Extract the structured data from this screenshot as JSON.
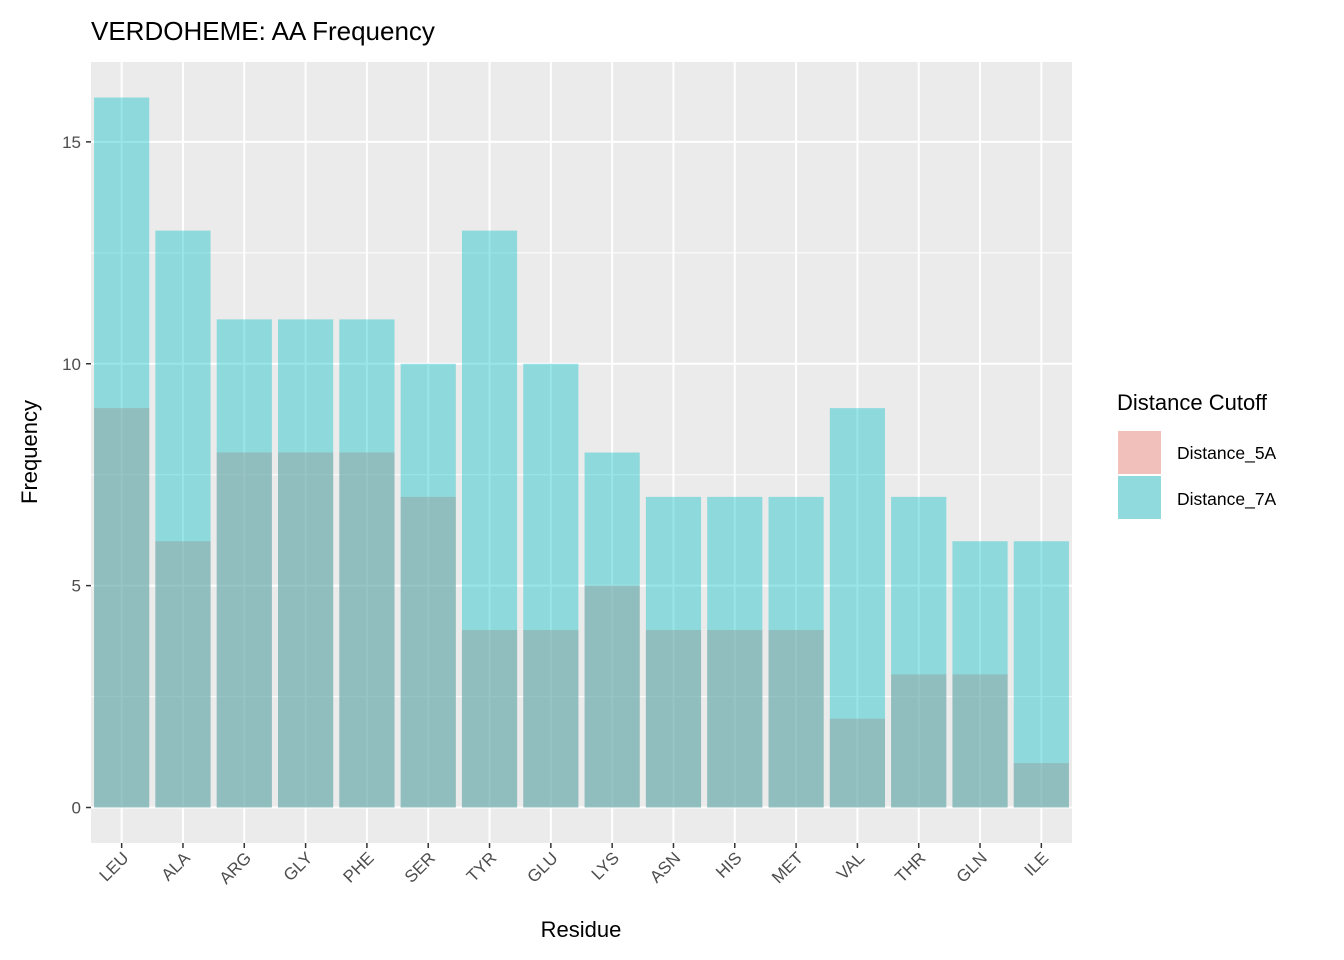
{
  "chart_data": {
    "type": "bar",
    "title": "VERDOHEME: AA Frequency",
    "xlabel": "Residue",
    "ylabel": "Frequency",
    "ylim": [
      -0.8,
      16.8
    ],
    "yticks": [
      0,
      5,
      10,
      15
    ],
    "grid": true,
    "legend": {
      "title": "Distance Cutoff",
      "position": "right"
    },
    "categories": [
      "LEU",
      "ALA",
      "ARG",
      "GLY",
      "PHE",
      "SER",
      "TYR",
      "GLU",
      "LYS",
      "ASN",
      "HIS",
      "MET",
      "VAL",
      "THR",
      "GLN",
      "ILE"
    ],
    "series": [
      {
        "name": "Distance_5A",
        "color": "#F8766D",
        "values": [
          9,
          6,
          8,
          8,
          8,
          7,
          4,
          4,
          5,
          4,
          4,
          4,
          2,
          3,
          3,
          1
        ]
      },
      {
        "name": "Distance_7A",
        "color": "#00BFC4",
        "values": [
          16,
          13,
          11,
          11,
          11,
          10,
          13,
          10,
          8,
          7,
          7,
          7,
          9,
          7,
          6,
          6
        ]
      }
    ],
    "panel_background": "#EBEBEB"
  }
}
